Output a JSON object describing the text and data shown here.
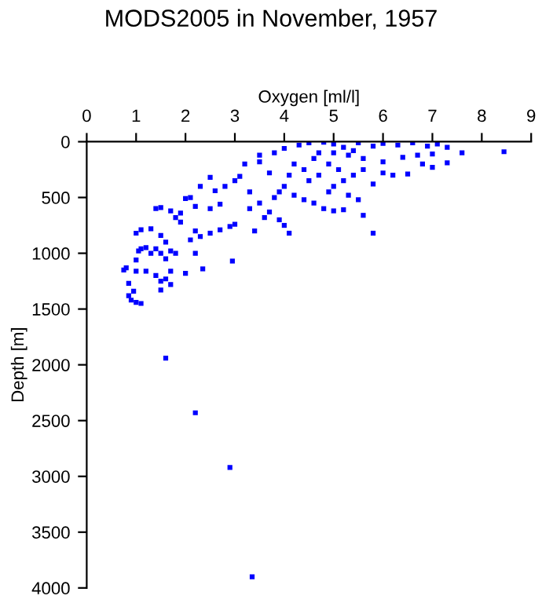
{
  "chart_data": {
    "type": "scatter",
    "title": "MODS2005 in November, 1957",
    "xlabel": "Oxygen [ml/l]",
    "ylabel": "Depth [m]",
    "xlim": [
      0,
      9
    ],
    "xticks": [
      0,
      1,
      2,
      3,
      4,
      5,
      6,
      7,
      8,
      9
    ],
    "ylim": [
      4000,
      0
    ],
    "yticks": [
      0,
      500,
      1000,
      1500,
      2000,
      2500,
      3000,
      3500,
      4000
    ],
    "marker": "square",
    "grid": false,
    "legend": false,
    "series": [
      {
        "color": "#0000ff",
        "x": [
          1.6,
          2.2,
          2.9,
          3.35,
          0.75,
          0.8,
          0.85,
          0.85,
          0.9,
          1.0,
          1.1,
          0.95,
          1.0,
          1.05,
          1.1,
          1.2,
          1.3,
          1.4,
          1.5,
          1.6,
          1.7,
          1.8,
          1.0,
          1.2,
          1.4,
          1.5,
          1.6,
          1.7,
          1.5,
          1.7,
          1.0,
          1.1,
          1.3,
          1.5,
          1.6,
          1.4,
          1.5,
          1.7,
          1.8,
          1.9,
          2.0,
          2.1,
          2.2,
          1.9,
          2.2,
          2.3,
          2.5,
          2.7,
          2.9,
          3.0,
          2.1,
          2.2,
          2.0,
          2.35,
          2.95,
          2.5,
          2.7,
          2.6,
          2.8,
          3.0,
          3.1,
          3.2,
          3.5,
          2.3,
          2.5,
          3.3,
          3.3,
          3.5,
          3.6,
          3.7,
          3.9,
          4.0,
          4.1,
          3.4,
          3.8,
          3.9,
          4.0,
          4.2,
          4.4,
          4.6,
          4.8,
          5.0,
          5.2,
          5.5,
          5.6,
          5.8,
          5.0,
          4.5,
          4.7,
          5.2,
          5.4,
          5.6,
          5.8,
          6.0,
          6.2,
          6.5,
          6.8,
          7.0,
          7.3,
          7.6,
          8.45,
          3.5,
          3.8,
          4.0,
          4.3,
          4.5,
          4.8,
          5.0,
          5.2,
          5.5,
          5.8,
          6.0,
          6.3,
          6.6,
          6.9,
          7.1,
          7.3,
          4.6,
          4.9,
          5.1,
          5.3,
          5.6,
          6.0,
          6.4,
          6.7,
          7.0,
          4.2,
          4.4,
          4.7,
          5.0,
          5.4,
          3.7,
          4.1,
          4.9,
          5.3
        ],
        "values": [
          1940,
          2430,
          2920,
          3900,
          1150,
          1130,
          1270,
          1380,
          1420,
          1440,
          1450,
          1340,
          1060,
          980,
          960,
          950,
          1000,
          960,
          1000,
          1050,
          980,
          1000,
          1160,
          1160,
          1200,
          1250,
          1230,
          1280,
          1330,
          1160,
          820,
          790,
          780,
          840,
          900,
          600,
          590,
          620,
          680,
          720,
          510,
          500,
          580,
          640,
          800,
          850,
          820,
          790,
          760,
          740,
          880,
          1000,
          1180,
          1140,
          1070,
          600,
          560,
          440,
          400,
          350,
          310,
          200,
          180,
          400,
          320,
          450,
          600,
          550,
          680,
          630,
          700,
          750,
          820,
          800,
          500,
          450,
          400,
          480,
          520,
          550,
          600,
          620,
          610,
          520,
          660,
          820,
          400,
          350,
          300,
          350,
          300,
          250,
          380,
          280,
          300,
          290,
          200,
          230,
          190,
          100,
          90,
          120,
          100,
          60,
          30,
          10,
          5,
          20,
          50,
          10,
          40,
          15,
          30,
          10,
          40,
          20,
          50,
          150,
          200,
          250,
          120,
          150,
          180,
          140,
          120,
          110,
          200,
          250,
          100,
          100,
          80,
          280,
          300,
          450,
          480
        ]
      }
    ]
  }
}
